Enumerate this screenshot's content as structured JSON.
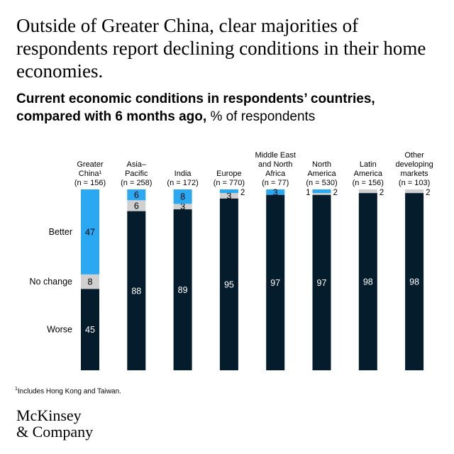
{
  "headline": "Outside of Greater China, clear majorities of respondents report declining conditions in their home economies.",
  "subtitle_bold": "Current economic conditions in respondents’ countries, compared with 6 months ago,",
  "subtitle_light": "% of respondents",
  "footnote_mark": "1",
  "footnote_text": "Includes Hong Kong and Taiwan.",
  "logo_line1": "McKinsey",
  "logo_line2": "& Company",
  "colors": {
    "worse": "#051c2c",
    "no_change": "#d0d0d0",
    "better": "#2ba8f2"
  },
  "chart_data": {
    "type": "bar",
    "stacked": true,
    "categories": [
      {
        "lines": [
          "Greater",
          "China¹",
          "(n = 156)"
        ]
      },
      {
        "lines": [
          "Asia–",
          "Pacific",
          "(n = 258)"
        ]
      },
      {
        "lines": [
          "India",
          "(n = 172)"
        ]
      },
      {
        "lines": [
          "Europe",
          "(n = 770)"
        ]
      },
      {
        "lines": [
          "Middle East",
          "and North",
          "Africa",
          "(n = 77)"
        ]
      },
      {
        "lines": [
          "North",
          "America",
          "(n = 530)"
        ]
      },
      {
        "lines": [
          "Latin",
          "America",
          "(n = 156)"
        ]
      },
      {
        "lines": [
          "Other",
          "developing",
          "markets",
          "(n = 103)"
        ]
      }
    ],
    "series": [
      {
        "name": "Worse",
        "key": "worse",
        "values": [
          45,
          88,
          89,
          95,
          97,
          97,
          98,
          98
        ]
      },
      {
        "name": "No change",
        "key": "no_change",
        "values": [
          8,
          6,
          3,
          3,
          0,
          1,
          2,
          2
        ]
      },
      {
        "name": "Better",
        "key": "better",
        "values": [
          47,
          6,
          8,
          2,
          3,
          2,
          0,
          0
        ]
      }
    ],
    "ylim": [
      0,
      100
    ]
  }
}
